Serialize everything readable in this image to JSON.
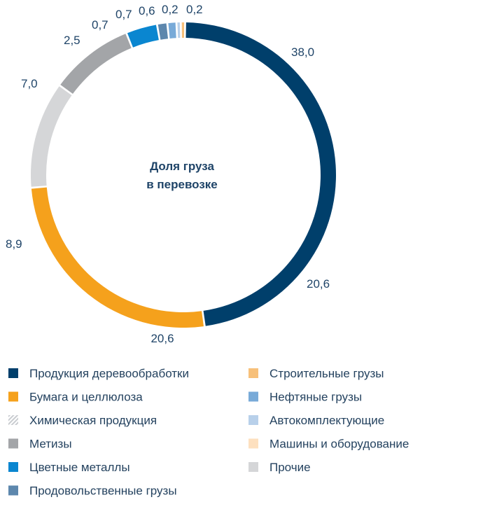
{
  "chart_data": {
    "type": "pie",
    "style": "donut",
    "center_title_lines": [
      "Доля груза",
      "в перевозке"
    ],
    "series": [
      {
        "name": "",
        "slices": [
          {
            "label": "Продукция деревообработки",
            "value": 38.0,
            "display": "38,0",
            "color": "#003f6b"
          },
          {
            "label": "Бумага и целлюлоза",
            "value": 20.6,
            "display": "20,6",
            "color": "#f5a11c"
          },
          {
            "label": "Прочие",
            "value": 8.9,
            "display": "8,9",
            "color": "#d5d6d8"
          },
          {
            "label": "Метизы",
            "value": 7.0,
            "display": "7,0",
            "color": "#a3a5a8"
          },
          {
            "label": "Цветные металлы",
            "value": 2.5,
            "display": "2,5",
            "color": "#0a86d0"
          },
          {
            "label": "Продовольственные грузы",
            "value": 0.7,
            "display": "0,7",
            "color": "#5d87ad"
          },
          {
            "label": "Нефтяные грузы",
            "value": 0.6,
            "display": "0,6",
            "color": "#78aad8"
          },
          {
            "label": "Автокомплектующие",
            "value": 0.2,
            "display": "0,2",
            "color": "#b8d0ea"
          },
          {
            "label": "Строительные грузы",
            "value": 0.2,
            "display": "0,2",
            "color": "#f7c07a"
          }
        ]
      }
    ],
    "value_labels": [
      {
        "text": "38,0"
      },
      {
        "text": "20,6"
      },
      {
        "text": "20,6"
      },
      {
        "text": "8,9"
      },
      {
        "text": "7,0"
      },
      {
        "text": "2,5"
      },
      {
        "text": "0,7"
      },
      {
        "text": "0,7"
      },
      {
        "text": "0,6"
      },
      {
        "text": "0,2"
      },
      {
        "text": "0,2"
      }
    ],
    "legend": [
      {
        "label": "Продукция деревообработки",
        "color": "#003f6b",
        "pattern": "solid"
      },
      {
        "label": "Бумага и целлюлоза",
        "color": "#f5a11c",
        "pattern": "solid"
      },
      {
        "label": "Химическая продукция",
        "color": "#c9ccd0",
        "pattern": "hatched"
      },
      {
        "label": "Метизы",
        "color": "#a3a5a8",
        "pattern": "solid"
      },
      {
        "label": "Цветные металлы",
        "color": "#0a86d0",
        "pattern": "solid"
      },
      {
        "label": "Продовольственные грузы",
        "color": "#5d87ad",
        "pattern": "solid"
      },
      {
        "label": "Строительные грузы",
        "color": "#f7c07a",
        "pattern": "solid"
      },
      {
        "label": "Нефтяные грузы",
        "color": "#78aad8",
        "pattern": "solid"
      },
      {
        "label": "Автокомплектующие",
        "color": "#b8d0ea",
        "pattern": "solid"
      },
      {
        "label": "Машины и оборудование",
        "color": "#fde0bf",
        "pattern": "solid"
      },
      {
        "label": "Прочие",
        "color": "#d5d6d8",
        "pattern": "solid"
      }
    ],
    "legend_placement": "bottom"
  }
}
